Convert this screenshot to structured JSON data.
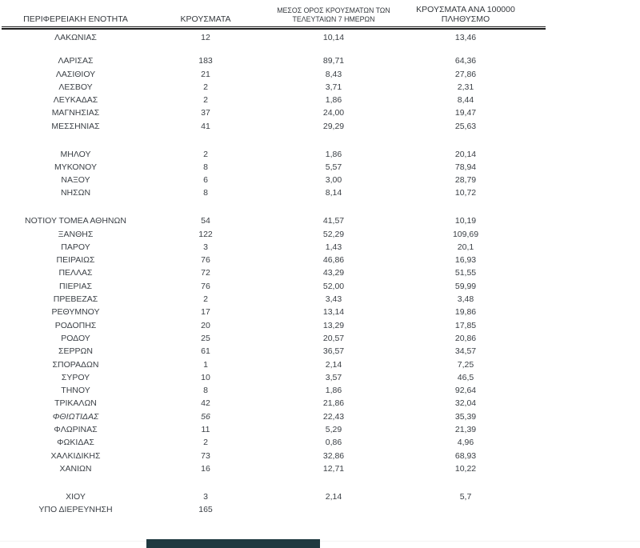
{
  "table": {
    "headers": {
      "region": "ΠΕΡΙΦΕΡΕΙΑΚΗ ΕΝΟΤΗΤΑ",
      "cases": "ΚΡΟΥΣΜΑΤΑ",
      "avg7_line1": "ΜΕΣΟΣ ΟΡΟΣ ΚΡΟΥΣΜΑΤΩΝ ΤΩΝ",
      "avg7_line2": "ΤΕΛΕΥΤΑΙΩΝ 7 ΗΜΕΡΩΝ",
      "per100k_line1": "ΚΡΟΥΣΜΑΤΑ ΑΝΑ 100000",
      "per100k_line2": "ΠΛΗΘΥΣΜΟ"
    },
    "groups": [
      {
        "rows": [
          {
            "region": "ΛΑΚΩΝΙΑΣ",
            "cases": "12",
            "avg7": "10,14",
            "per100k": "13,46"
          }
        ]
      },
      {
        "rows": [
          {
            "region": "ΛΑΡΙΣΑΣ",
            "cases": "183",
            "avg7": "89,71",
            "per100k": "64,36"
          },
          {
            "region": "ΛΑΣΙΘΙΟΥ",
            "cases": "21",
            "avg7": "8,43",
            "per100k": "27,86"
          },
          {
            "region": "ΛΕΣΒΟΥ",
            "cases": "2",
            "avg7": "3,71",
            "per100k": "2,31"
          },
          {
            "region": "ΛΕΥΚΑΔΑΣ",
            "cases": "2",
            "avg7": "1,86",
            "per100k": "8,44"
          },
          {
            "region": "ΜΑΓΝΗΣΙΑΣ",
            "cases": "37",
            "avg7": "24,00",
            "per100k": "19,47"
          },
          {
            "region": "ΜΕΣΣΗΝΙΑΣ",
            "cases": "41",
            "avg7": "29,29",
            "per100k": "25,63"
          }
        ]
      },
      {
        "rows": [
          {
            "region": "ΜΗΛΟΥ",
            "cases": "2",
            "avg7": "1,86",
            "per100k": "20,14"
          },
          {
            "region": "ΜΥΚΟΝΟΥ",
            "cases": "8",
            "avg7": "5,57",
            "per100k": "78,94"
          },
          {
            "region": "ΝΑΞΟΥ",
            "cases": "6",
            "avg7": "3,00",
            "per100k": "28,79"
          },
          {
            "region": "ΝΗΣΩΝ",
            "cases": "8",
            "avg7": "8,14",
            "per100k": "10,72"
          }
        ]
      },
      {
        "rows": [
          {
            "region": "ΝΟΤΙΟΥ ΤΟΜΕΑ ΑΘΗΝΩΝ",
            "cases": "54",
            "avg7": "41,57",
            "per100k": "10,19"
          },
          {
            "region": "ΞΑΝΘΗΣ",
            "cases": "122",
            "avg7": "52,29",
            "per100k": "109,69"
          },
          {
            "region": "ΠΑΡΟΥ",
            "cases": "3",
            "avg7": "1,43",
            "per100k": "20,1"
          },
          {
            "region": "ΠΕΙΡΑΙΩΣ",
            "cases": "76",
            "avg7": "46,86",
            "per100k": "16,93"
          },
          {
            "region": "ΠΕΛΛΑΣ",
            "cases": "72",
            "avg7": "43,29",
            "per100k": "51,55"
          },
          {
            "region": "ΠΙΕΡΙΑΣ",
            "cases": "76",
            "avg7": "52,00",
            "per100k": "59,99"
          },
          {
            "region": "ΠΡΕΒΕΖΑΣ",
            "cases": "2",
            "avg7": "3,43",
            "per100k": "3,48"
          },
          {
            "region": "ΡΕΘΥΜΝΟΥ",
            "cases": "17",
            "avg7": "13,14",
            "per100k": "19,86"
          },
          {
            "region": "ΡΟΔΟΠΗΣ",
            "cases": "20",
            "avg7": "13,29",
            "per100k": "17,85"
          },
          {
            "region": "ΡΟΔΟΥ",
            "cases": "25",
            "avg7": "20,57",
            "per100k": "20,86"
          },
          {
            "region": "ΣΕΡΡΩΝ",
            "cases": "61",
            "avg7": "36,57",
            "per100k": "34,57"
          },
          {
            "region": "ΣΠΟΡΑΔΩΝ",
            "cases": "1",
            "avg7": "2,14",
            "per100k": "7,25"
          },
          {
            "region": "ΣΥΡΟΥ",
            "cases": "10",
            "avg7": "3,57",
            "per100k": "46,5"
          },
          {
            "region": "ΤΗΝΟΥ",
            "cases": "8",
            "avg7": "1,86",
            "per100k": "92,64"
          },
          {
            "region": "ΤΡΙΚΑΛΩΝ",
            "cases": "42",
            "avg7": "21,86",
            "per100k": "32,04"
          },
          {
            "region": "ΦΘΙΩΤΙΔΑΣ",
            "cases": "56",
            "avg7": "22,43",
            "per100k": "35,39",
            "italic": true
          },
          {
            "region": "ΦΛΩΡΙΝΑΣ",
            "cases": "11",
            "avg7": "5,29",
            "per100k": "21,39"
          },
          {
            "region": "ΦΩΚΙΔΑΣ",
            "cases": "2",
            "avg7": "0,86",
            "per100k": "4,96"
          },
          {
            "region": "ΧΑΛΚΙΔΙΚΗΣ",
            "cases": "73",
            "avg7": "32,86",
            "per100k": "68,93"
          },
          {
            "region": "ΧΑΝΙΩΝ",
            "cases": "16",
            "avg7": "12,71",
            "per100k": "10,22"
          }
        ]
      },
      {
        "rows": [
          {
            "region": "ΧΙΟΥ",
            "cases": "3",
            "avg7": "2,14",
            "per100k": "5,7"
          },
          {
            "region": "ΥΠΟ ΔΙΕΡΕΥΝΗΣΗ",
            "cases": "165",
            "avg7": "",
            "per100k": ""
          }
        ]
      }
    ]
  },
  "colors": {
    "bottom_bar": "#1f3940",
    "text": "#3b4046",
    "divider": "#1d1d1d"
  }
}
